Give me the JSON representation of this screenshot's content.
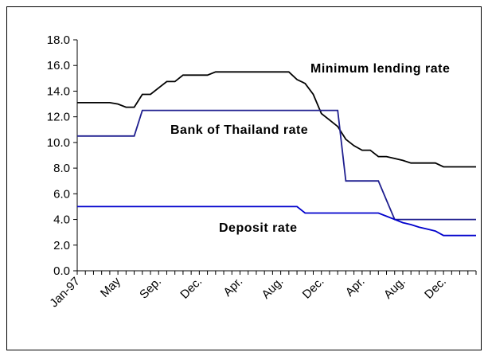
{
  "chart_data": {
    "type": "line",
    "categories": [
      "Jan-97",
      null,
      null,
      null,
      null,
      "May",
      null,
      null,
      null,
      null,
      "Sep.",
      null,
      null,
      null,
      null,
      "Dec.",
      null,
      null,
      null,
      null,
      "Apr.",
      null,
      null,
      null,
      null,
      "Aug.",
      null,
      null,
      null,
      null,
      "Dec.",
      null,
      null,
      null,
      null,
      "Apr.",
      null,
      null,
      null,
      null,
      "Aug.",
      null,
      null,
      null,
      null,
      "Dec.",
      null,
      null,
      null,
      null
    ],
    "series": [
      {
        "name": "Minimum lending rate",
        "color": "#000000",
        "values": [
          13.1,
          13.1,
          13.1,
          13.1,
          13.1,
          13.0,
          12.75,
          12.75,
          13.75,
          13.75,
          14.25,
          14.75,
          14.75,
          15.25,
          15.25,
          15.25,
          15.25,
          15.5,
          15.5,
          15.5,
          15.5,
          15.5,
          15.5,
          15.5,
          15.5,
          15.5,
          15.5,
          14.9,
          14.6,
          13.75,
          12.25,
          11.75,
          11.25,
          10.25,
          9.75,
          9.4,
          9.4,
          8.9,
          8.9,
          8.75,
          8.6,
          8.4,
          8.4,
          8.4,
          8.4,
          8.1,
          8.1,
          8.1,
          8.1,
          8.1
        ]
      },
      {
        "name": "Bank of Thailand rate",
        "color": "#1f1f8f",
        "values": [
          10.5,
          10.5,
          10.5,
          10.5,
          10.5,
          10.5,
          10.5,
          10.5,
          12.5,
          12.5,
          12.5,
          12.5,
          12.5,
          12.5,
          12.5,
          12.5,
          12.5,
          12.5,
          12.5,
          12.5,
          12.5,
          12.5,
          12.5,
          12.5,
          12.5,
          12.5,
          12.5,
          12.5,
          12.5,
          12.5,
          12.5,
          12.5,
          12.5,
          7.0,
          7.0,
          7.0,
          7.0,
          7.0,
          5.5,
          4.0,
          4.0,
          4.0,
          4.0,
          4.0,
          4.0,
          4.0,
          4.0,
          4.0,
          4.0,
          4.0
        ]
      },
      {
        "name": "Deposit rate",
        "color": "#0000cc",
        "values": [
          5.0,
          5.0,
          5.0,
          5.0,
          5.0,
          5.0,
          5.0,
          5.0,
          5.0,
          5.0,
          5.0,
          5.0,
          5.0,
          5.0,
          5.0,
          5.0,
          5.0,
          5.0,
          5.0,
          5.0,
          5.0,
          5.0,
          5.0,
          5.0,
          5.0,
          5.0,
          5.0,
          5.0,
          4.5,
          4.5,
          4.5,
          4.5,
          4.5,
          4.5,
          4.5,
          4.5,
          4.5,
          4.5,
          4.25,
          4.0,
          3.75,
          3.6,
          3.4,
          3.25,
          3.1,
          2.75,
          2.75,
          2.75,
          2.75,
          2.75
        ]
      }
    ],
    "annotations": [
      {
        "text": "Minimum lending rate",
        "series": 0
      },
      {
        "text": "Bank of Thailand rate",
        "series": 1
      },
      {
        "text": "Deposit rate",
        "series": 2
      }
    ],
    "ylim": [
      0,
      18
    ],
    "yticks": [
      {
        "value": 0,
        "label": "0.0"
      },
      {
        "value": 2,
        "label": "2.0"
      },
      {
        "value": 4,
        "label": "4.0"
      },
      {
        "value": 6,
        "label": "6.0"
      },
      {
        "value": 8,
        "label": "8.0"
      },
      {
        "value": 10,
        "label": "10.0"
      },
      {
        "value": 12,
        "label": "12.0"
      },
      {
        "value": 14,
        "label": "14.0"
      },
      {
        "value": 16,
        "label": "16.0"
      },
      {
        "value": 18,
        "label": "18.0"
      }
    ],
    "grid": false
  }
}
